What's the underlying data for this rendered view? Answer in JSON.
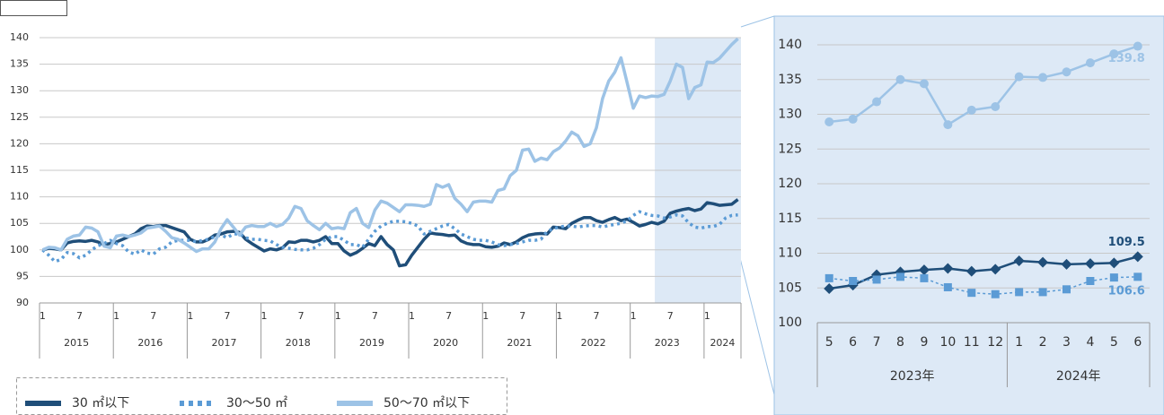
{
  "chart_data": [
    {
      "type": "line",
      "ylim": [
        90,
        140
      ],
      "yticks": [
        90,
        95,
        100,
        105,
        110,
        115,
        120,
        125,
        130,
        135,
        140
      ],
      "grid": true,
      "legend": "bottom-left",
      "highlight": [
        100,
        113
      ],
      "categories": [
        "1",
        null,
        null,
        null,
        null,
        null,
        "7",
        null,
        null,
        null,
        null,
        null,
        "1",
        null,
        null,
        null,
        null,
        null,
        "7",
        null,
        null,
        null,
        null,
        null,
        "1",
        null,
        null,
        null,
        null,
        null,
        "7",
        null,
        null,
        null,
        null,
        null,
        "1",
        null,
        null,
        null,
        null,
        null,
        "7",
        null,
        null,
        null,
        null,
        null,
        "1",
        null,
        null,
        null,
        null,
        null,
        "7",
        null,
        null,
        null,
        null,
        null,
        "1",
        null,
        null,
        null,
        null,
        null,
        "7",
        null,
        null,
        null,
        null,
        null,
        "1",
        null,
        null,
        null,
        null,
        null,
        "7",
        null,
        null,
        null,
        null,
        null,
        "1",
        null,
        null,
        null,
        null,
        null,
        "7",
        null,
        null,
        null,
        null,
        null,
        "1",
        null,
        null,
        null,
        null,
        null,
        "7",
        null,
        null,
        null,
        null,
        null,
        "1",
        null,
        null,
        null,
        null,
        null
      ],
      "groups": [
        "2015",
        "2016",
        "2017",
        "2018",
        "2019",
        "2020",
        "2021",
        "2022",
        "2023",
        "2024"
      ],
      "series": [
        {
          "name": "30 ㎡以下",
          "color": "#1f4e79",
          "values": [
            100,
            100.3,
            100.2,
            100,
            101.3,
            101.6,
            101.7,
            101.6,
            101.8,
            101.5,
            101,
            101.2,
            101.5,
            102,
            102.5,
            103,
            104,
            104.5,
            104.4,
            104.6,
            104.6,
            104.2,
            103.8,
            103.4,
            102,
            101.5,
            101.5,
            102,
            102.8,
            103,
            103.4,
            103.5,
            103.3,
            102,
            101.2,
            100.5,
            99.8,
            100.2,
            100,
            100.4,
            101.5,
            101.4,
            101.8,
            101.8,
            101.5,
            101.8,
            102.5,
            101.2,
            101.2,
            99.8,
            99,
            99.5,
            100.3,
            101.2,
            100.8,
            102.5,
            101,
            100,
            97,
            97.2,
            99,
            100.5,
            102,
            103.2,
            103,
            102.9,
            102.7,
            102.8,
            101.7,
            101.2,
            101,
            101,
            100.6,
            100.5,
            100.7,
            101.3,
            101,
            101.5,
            102.3,
            102.8,
            103,
            103.1,
            103,
            104.3,
            104.2,
            104,
            105,
            105.6,
            106.1,
            106.1,
            105.5,
            105.2,
            105.7,
            106.1,
            105.5,
            105.8,
            105.2,
            104.5,
            104.8,
            105.2,
            104.9,
            105.4,
            106.9,
            107.3,
            107.6,
            107.8,
            107.4,
            107.7,
            108.9,
            108.7,
            108.4,
            108.5,
            108.6,
            109.5
          ]
        },
        {
          "name": "30〜50 ㎡",
          "color": "#5b9bd5",
          "line_style": "dotted",
          "values": [
            100,
            99,
            97.8,
            98.2,
            99.5,
            99.3,
            98.5,
            99,
            100,
            100.8,
            101.2,
            101.8,
            101.2,
            100.8,
            99.6,
            99.2,
            100,
            99.4,
            99.2,
            100.2,
            100.5,
            101.5,
            101.8,
            101.8,
            101.8,
            101.5,
            101.8,
            102,
            102.5,
            102.8,
            102.3,
            103,
            103,
            102.3,
            102,
            102,
            101.8,
            101.7,
            101,
            100.5,
            100.3,
            100.1,
            100,
            100,
            100.3,
            101,
            102,
            102.5,
            102.5,
            101.8,
            101,
            101,
            100.5,
            102,
            103.5,
            104.5,
            105,
            105.4,
            105.4,
            105.3,
            105,
            104.5,
            103,
            103.5,
            104,
            104.5,
            104.8,
            104,
            103,
            102.5,
            102,
            101.8,
            101.8,
            101.5,
            101,
            100.8,
            101,
            101.2,
            101.5,
            101.8,
            101.8,
            102,
            103.5,
            104,
            104.3,
            104.5,
            104.5,
            104.3,
            104.5,
            104.6,
            104.6,
            104.3,
            104.6,
            104.8,
            105,
            105.5,
            106.5,
            107.2,
            106.8,
            106.5,
            106.4,
            106,
            106.2,
            106.6,
            106.4,
            105.1,
            104.3,
            104.1,
            104.4,
            104.4,
            104.8,
            106,
            106.5,
            106.6
          ]
        },
        {
          "name": "50〜70 ㎡以下",
          "color": "#9dc3e6",
          "values": [
            100,
            100.5,
            100.4,
            100,
            102,
            102.6,
            102.8,
            104.3,
            104.1,
            103.4,
            100.7,
            100.4,
            102.6,
            102.8,
            102.5,
            102.8,
            103.2,
            104.1,
            104.3,
            104.5,
            103.5,
            102.3,
            102,
            101.3,
            100.5,
            99.7,
            100.2,
            100.2,
            101.5,
            104,
            105.7,
            104.3,
            102.8,
            104.3,
            104.6,
            104.4,
            104.4,
            105,
            104.4,
            104.8,
            106,
            108.2,
            107.8,
            105.5,
            104.6,
            103.8,
            105,
            104,
            104.2,
            104,
            107,
            107.8,
            105,
            104.2,
            107.5,
            109.2,
            108.8,
            108,
            107.2,
            108.5,
            108.5,
            108.4,
            108.2,
            108.6,
            112.3,
            111.8,
            112.3,
            109.7,
            108.6,
            107.2,
            109,
            109.2,
            109.2,
            109,
            111.2,
            111.5,
            114,
            115,
            118.8,
            119,
            116.7,
            117.3,
            117,
            118.5,
            119.2,
            120.5,
            122.2,
            121.5,
            119.5,
            120,
            123,
            128.5,
            131.8,
            133.5,
            136.2,
            131.5,
            126.7,
            129,
            128.7,
            129,
            128.9,
            129.3,
            131.8,
            135,
            134.4,
            128.5,
            130.6,
            131.1,
            135.4,
            135.3,
            136.1,
            137.4,
            138.7,
            139.8
          ]
        }
      ]
    },
    {
      "type": "line",
      "ylim": [
        100,
        140
      ],
      "yticks": [
        100,
        105,
        110,
        115,
        120,
        125,
        130,
        135,
        140
      ],
      "grid": true,
      "categories": [
        "5",
        "6",
        "7",
        "8",
        "9",
        "10",
        "11",
        "12",
        "1",
        "2",
        "3",
        "4",
        "5",
        "6"
      ],
      "groups": [
        "2023年",
        "2024年"
      ],
      "series": [
        {
          "color": "#1f4e79",
          "marker": "diamond",
          "values": [
            104.9,
            105.4,
            106.9,
            107.3,
            107.6,
            107.8,
            107.4,
            107.7,
            108.9,
            108.7,
            108.4,
            108.5,
            108.6,
            109.5
          ]
        },
        {
          "color": "#5b9bd5",
          "marker": "square",
          "line_style": "dashed",
          "values": [
            106.4,
            106,
            106.2,
            106.6,
            106.4,
            105.1,
            104.3,
            104.1,
            104.4,
            104.4,
            104.8,
            106,
            106.5,
            106.6
          ]
        },
        {
          "color": "#9dc3e6",
          "marker": "circle",
          "values": [
            128.9,
            129.3,
            131.8,
            135,
            134.4,
            128.5,
            130.6,
            131.1,
            135.4,
            135.3,
            136.1,
            137.4,
            138.7,
            139.8
          ]
        }
      ]
    }
  ]
}
